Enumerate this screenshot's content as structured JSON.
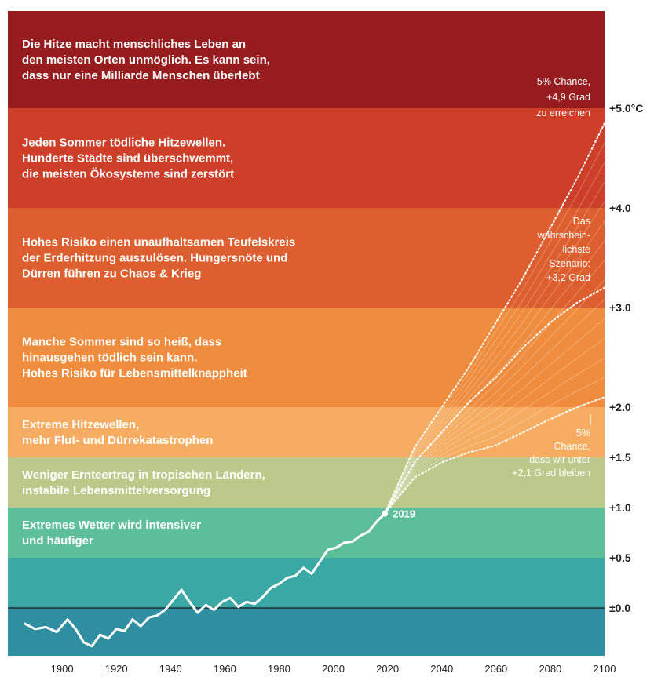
{
  "chart_data": {
    "type": "line",
    "x_range": [
      1880,
      2100
    ],
    "y_range": [
      -0.5,
      5.5
    ],
    "x_ticks": [
      "1900",
      "1920",
      "1940",
      "1960",
      "1980",
      "2000",
      "2020",
      "2040",
      "2060",
      "2080",
      "2100"
    ],
    "y_ticks": [
      {
        "value": 0.0,
        "label": "±0.0"
      },
      {
        "value": 0.5,
        "label": "+0.5"
      },
      {
        "value": 1.0,
        "label": "+1.0"
      },
      {
        "value": 1.5,
        "label": "+1.5"
      },
      {
        "value": 2.0,
        "label": "+2.0"
      },
      {
        "value": 3.0,
        "label": "+3.0"
      },
      {
        "value": 4.0,
        "label": "+4.0"
      },
      {
        "value": 5.0,
        "label": "+5.0°C"
      }
    ],
    "bands": [
      {
        "from": -0.5,
        "to": 0.0,
        "color": "#2f8fa0",
        "text": []
      },
      {
        "from": 0.0,
        "to": 0.5,
        "color": "#3aa8a4",
        "text": []
      },
      {
        "from": 0.5,
        "to": 1.0,
        "color": "#5cbf9a",
        "text": [
          "Extremes Wetter wird intensiver",
          "und häufiger"
        ]
      },
      {
        "from": 1.0,
        "to": 1.5,
        "color": "#bcc98a",
        "text": [
          "Weniger Ernteertrag in tropischen Ländern,",
          "instabile Lebensmittelversorgung"
        ]
      },
      {
        "from": 1.5,
        "to": 2.0,
        "color": "#f6ad62",
        "text": [
          "Extreme Hitzewellen,",
          "mehr Flut- und Dürrekatastrophen"
        ]
      },
      {
        "from": 2.0,
        "to": 3.0,
        "color": "#ef8c3d",
        "text": [
          "Manche Sommer sind so heiß, dass",
          "hinausgehen tödlich sein kann.",
          "Hohes Risiko für Lebensmittelknappheit"
        ]
      },
      {
        "from": 3.0,
        "to": 4.0,
        "color": "#dd5e2e",
        "text": [
          "Hohes Risiko einen unaufhaltsamen Teufelskreis",
          "der Erderhitzung auszulösen. Hungersnöte und",
          "Dürren führen zu Chaos & Krieg"
        ]
      },
      {
        "from": 4.0,
        "to": 5.0,
        "color": "#cd3f28",
        "text": [
          "Jeden Sommer tödliche Hitzewellen.",
          "Hunderte Städte sind überschwemmt,",
          "die meisten Ökosysteme sind zerstört"
        ]
      },
      {
        "from": 5.0,
        "to": 6.0,
        "color": "#971c1e",
        "text": [
          "Die Hitze macht menschliches Leben an",
          "den meisten Orten unmöglich. Es kann sein,",
          "dass nur eine Milliarde Menschen überlebt"
        ]
      }
    ],
    "historical": {
      "x": [
        1886,
        1890,
        1894,
        1898,
        1902,
        1905,
        1908,
        1911,
        1914,
        1917,
        1920,
        1923,
        1926,
        1929,
        1932,
        1935,
        1938,
        1941,
        1944,
        1947,
        1950,
        1953,
        1956,
        1959,
        1962,
        1965,
        1968,
        1971,
        1974,
        1977,
        1980,
        1983,
        1986,
        1989,
        1992,
        1995,
        1998,
        2001,
        2004,
        2007,
        2010,
        2013,
        2016,
        2019
      ],
      "y": [
        -0.16,
        -0.22,
        -0.2,
        -0.25,
        -0.12,
        -0.22,
        -0.36,
        -0.4,
        -0.28,
        -0.32,
        -0.22,
        -0.24,
        -0.12,
        -0.19,
        -0.1,
        -0.08,
        -0.02,
        0.08,
        0.18,
        0.06,
        -0.05,
        0.03,
        -0.02,
        0.06,
        0.1,
        0.01,
        0.06,
        0.04,
        0.11,
        0.2,
        0.24,
        0.3,
        0.32,
        0.4,
        0.34,
        0.46,
        0.58,
        0.6,
        0.65,
        0.66,
        0.72,
        0.76,
        0.86,
        0.94
      ]
    },
    "projections": [
      {
        "x": [
          2019,
          2030,
          2040,
          2050,
          2060,
          2070,
          2080,
          2090,
          2100
        ],
        "y": [
          0.94,
          1.6,
          2.0,
          2.4,
          2.85,
          3.3,
          3.8,
          4.3,
          4.85
        ]
      },
      {
        "x": [
          2019,
          2030,
          2040,
          2050,
          2060,
          2070,
          2080,
          2090,
          2100
        ],
        "y": [
          0.94,
          1.45,
          1.75,
          2.05,
          2.3,
          2.6,
          2.85,
          3.05,
          3.2
        ]
      },
      {
        "x": [
          2019,
          2030,
          2040,
          2050,
          2060,
          2070,
          2080,
          2090,
          2100
        ],
        "y": [
          0.94,
          1.3,
          1.45,
          1.55,
          1.62,
          1.75,
          1.88,
          2.0,
          2.1
        ]
      }
    ],
    "point_label": {
      "x": 2019,
      "y": 0.94,
      "text": "2019"
    },
    "annotations": {
      "top": [
        "5% Chance,",
        "+4,9 Grad",
        "zu erreichen"
      ],
      "mid": [
        "Das",
        "wahrschein-",
        "lichste",
        "Szenario:",
        "+3,2 Grad"
      ],
      "bottom": [
        "5%",
        "Chance,",
        "dass wir unter",
        "+2,1 Grad bleiben"
      ]
    }
  }
}
